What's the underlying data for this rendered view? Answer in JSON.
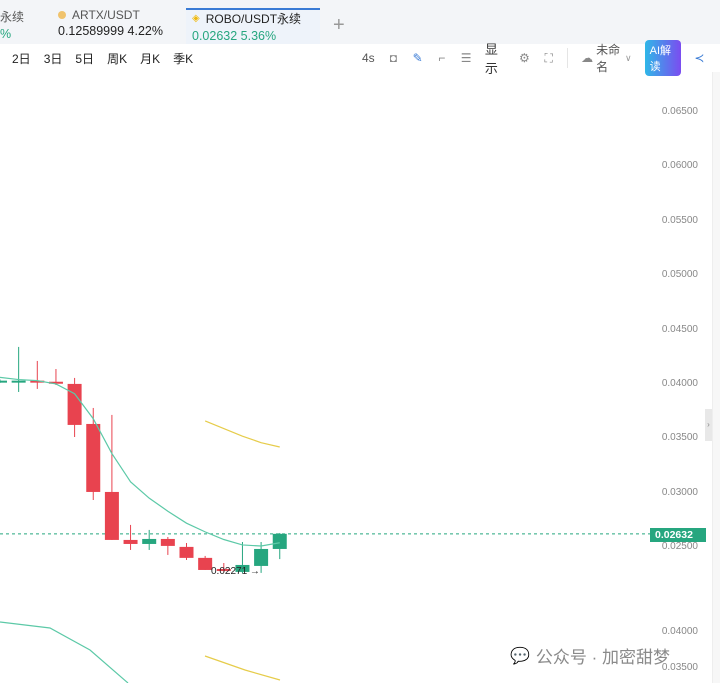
{
  "tabs": [
    {
      "name": "永续",
      "price": "",
      "change": "%"
    },
    {
      "name": "ARTX/USDT",
      "price": "0.12589999",
      "change": "4.22%"
    },
    {
      "name": "ROBO/USDT永续",
      "price": "0.02632",
      "change": "5.36%",
      "active": true
    }
  ],
  "add_tab": "+",
  "timeframes": [
    "2日",
    "3日",
    "5日",
    "周K",
    "月K",
    "季K"
  ],
  "tools": {
    "interval": "4s",
    "display": "显示",
    "layout_name": "未命名",
    "ai": "AI解读"
  },
  "axis_labels": [
    "0.06500",
    "0.06000",
    "0.05500",
    "0.05000",
    "0.04500",
    "0.04000",
    "0.03500",
    "0.03000",
    "0.02500"
  ],
  "lower_axis_labels": [
    "0.04000",
    "0.03500"
  ],
  "current_price": "0.02632",
  "low_label": "0.02271 →",
  "watermark": "公众号 · 加密甜梦",
  "colors": {
    "up": "#26a67f",
    "down": "#e8434f",
    "ma1": "#5cc9a7",
    "ma2": "#e6cc4a",
    "accent": "#3a7bd5"
  },
  "chart_data": {
    "type": "candlestick",
    "ylim": [
      0.0195,
      0.0665
    ],
    "candles": [
      {
        "o": 0.04037,
        "h": 0.0405,
        "l": 0.0402,
        "c": 0.0404
      },
      {
        "o": 0.0403,
        "h": 0.0435,
        "l": 0.03936,
        "c": 0.0404
      },
      {
        "o": 0.0404,
        "h": 0.04221,
        "l": 0.03964,
        "c": 0.0403
      },
      {
        "o": 0.0403,
        "h": 0.04147,
        "l": 0.04,
        "c": 0.04015
      },
      {
        "o": 0.0401,
        "h": 0.04065,
        "l": 0.03522,
        "c": 0.03633
      },
      {
        "o": 0.03642,
        "h": 0.03789,
        "l": 0.02943,
        "c": 0.03017
      },
      {
        "o": 0.03017,
        "h": 0.03725,
        "l": 0.02576,
        "c": 0.02576
      },
      {
        "o": 0.02576,
        "h": 0.02714,
        "l": 0.02484,
        "c": 0.02539
      },
      {
        "o": 0.02539,
        "h": 0.02668,
        "l": 0.02484,
        "c": 0.02585
      },
      {
        "o": 0.02585,
        "h": 0.02603,
        "l": 0.02438,
        "c": 0.02521
      },
      {
        "o": 0.02512,
        "h": 0.02548,
        "l": 0.02392,
        "c": 0.02411
      },
      {
        "o": 0.02411,
        "h": 0.02429,
        "l": 0.023,
        "c": 0.023
      },
      {
        "o": 0.02309,
        "h": 0.02364,
        "l": 0.02282,
        "c": 0.02291
      },
      {
        "o": 0.02282,
        "h": 0.02557,
        "l": 0.02271,
        "c": 0.02346
      },
      {
        "o": 0.02337,
        "h": 0.02557,
        "l": 0.02273,
        "c": 0.02493
      },
      {
        "o": 0.02493,
        "h": 0.0264,
        "l": 0.024,
        "c": 0.02632
      }
    ],
    "ma_fast": [
      0.0407,
      0.0405,
      0.0404,
      0.0401,
      0.0392,
      0.0369,
      0.0337,
      0.0311,
      0.0296,
      0.0284,
      0.0273,
      0.0265,
      0.0258,
      0.0253,
      0.0252,
      0.0255
    ],
    "ma_slow": [
      null,
      null,
      null,
      null,
      null,
      null,
      null,
      null,
      null,
      null,
      null,
      0.0367,
      0.036,
      0.0353,
      0.0347,
      0.0343
    ]
  }
}
